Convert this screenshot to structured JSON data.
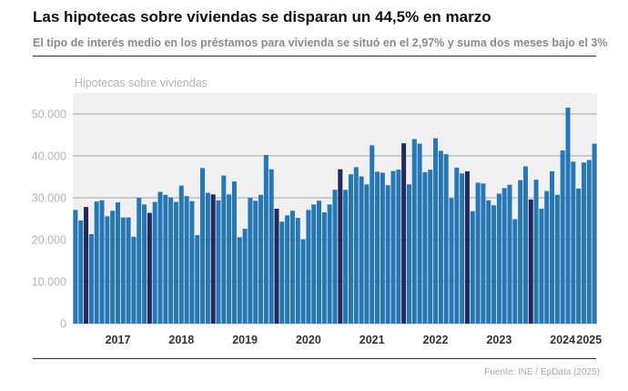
{
  "title": "Las hipotecas sobre viviendas se disparan un 44,5% en marzo",
  "subtitle": "El tipo de interés medio en los préstamos para vivienda se situó en el 2,97% y suma dos meses bajo el 3%",
  "source": "Fuente: INE / EpData (2025)",
  "colors": {
    "bar": "#2577b5",
    "highlight": "#222a5c",
    "plot_bg": "#f0f0f0",
    "grid": "#a8a8a8"
  },
  "chart_data": {
    "type": "bar",
    "series_name": "Hipotecas sobre viviendas",
    "ylim": [
      0,
      55000
    ],
    "y_ticks": [
      {
        "value": 0,
        "label": "0"
      },
      {
        "value": 10000,
        "label": "10.000"
      },
      {
        "value": 20000,
        "label": "20.000"
      },
      {
        "value": 30000,
        "label": "30.000"
      },
      {
        "value": 40000,
        "label": "40.000"
      },
      {
        "value": 50000,
        "label": "50.000"
      }
    ],
    "start": "2016-10",
    "years": [
      {
        "label": "2017",
        "start_index": 3
      },
      {
        "label": "2018",
        "start_index": 15
      },
      {
        "label": "2019",
        "start_index": 27
      },
      {
        "label": "2020",
        "start_index": 39
      },
      {
        "label": "2021",
        "start_index": 51
      },
      {
        "label": "2022",
        "start_index": 63
      },
      {
        "label": "2023",
        "start_index": 75
      },
      {
        "label": "2024",
        "start_index": 87
      },
      {
        "label": "2025",
        "start_index": 99
      }
    ],
    "highlight_indices": [
      2,
      14,
      26,
      38,
      50,
      62,
      74,
      86,
      101
    ],
    "values": [
      27100,
      24600,
      27800,
      21300,
      29100,
      29400,
      25600,
      26900,
      28900,
      25300,
      25300,
      20700,
      30000,
      28400,
      26400,
      29000,
      31400,
      30700,
      30100,
      29000,
      32900,
      30400,
      29200,
      21100,
      37100,
      31200,
      30800,
      29400,
      35300,
      30800,
      33900,
      20600,
      22600,
      30000,
      29300,
      30700,
      40200,
      36800,
      27400,
      24300,
      25800,
      26900,
      25200,
      20100,
      27100,
      28400,
      29300,
      26500,
      28400,
      31900,
      36800,
      31900,
      35600,
      37300,
      35100,
      33200,
      42500,
      36200,
      36000,
      33000,
      36400,
      36700,
      43000,
      33200,
      44000,
      42900,
      36100,
      36700,
      44200,
      41200,
      40400,
      29900,
      37200,
      35800,
      36300,
      26800,
      33600,
      33400,
      29400,
      28200,
      31000,
      32300,
      33100,
      24900,
      34200,
      37500,
      29600,
      34300,
      27400,
      31600,
      36300,
      30700,
      41300,
      51500,
      38600,
      32200,
      38400,
      39000,
      42900
    ]
  }
}
